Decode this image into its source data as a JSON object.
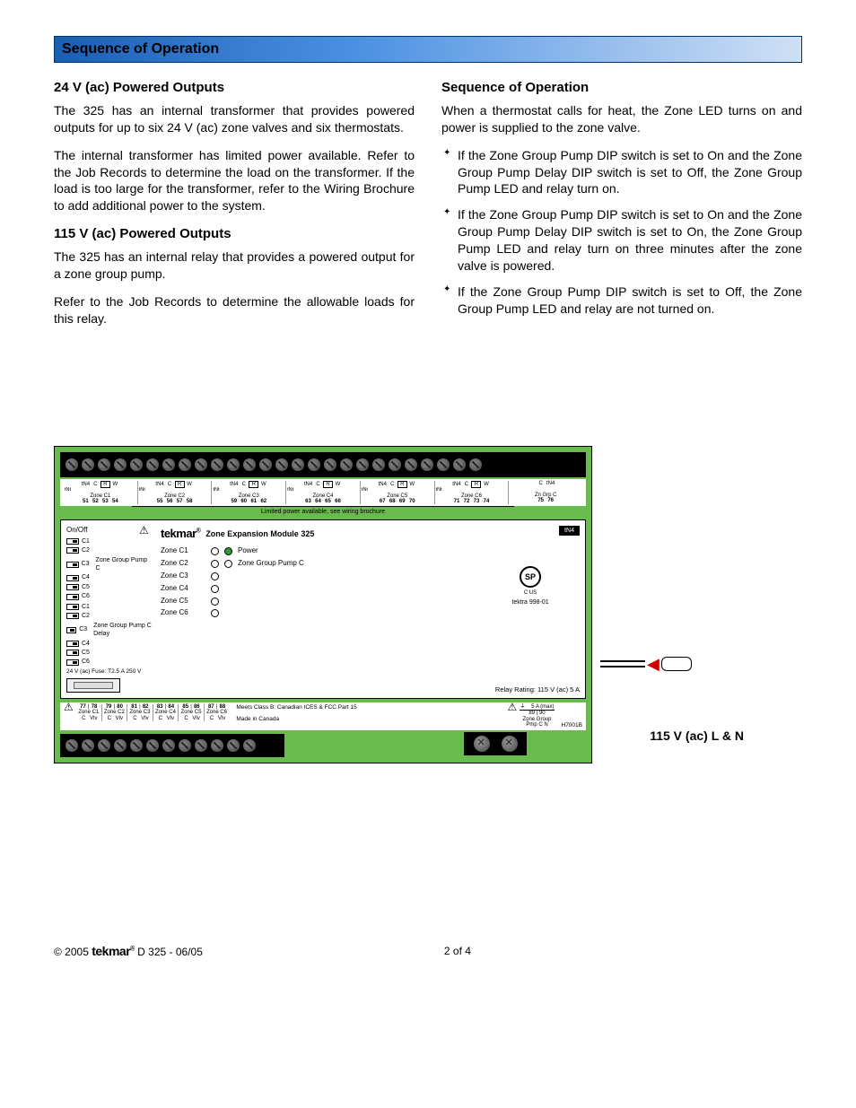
{
  "section_bar_title": "Sequence of Operation",
  "left_column": {
    "h1": "24 V (ac) Powered Outputs",
    "p1": "The 325 has an internal transformer that provides powered outputs for up to six 24 V (ac) zone valves and six thermostats.",
    "p2": "The internal transformer has limited power available. Refer to the Job Records to determine the load on the transformer. If the load is too large for the transformer, refer to the Wiring Brochure to add additional power to the system.",
    "h2": "115 V (ac) Powered Outputs",
    "p3": "The 325 has an internal relay that provides a powered output for a zone group pump.",
    "p4": "Refer to the Job Records to determine the allowable loads for this relay."
  },
  "right_column": {
    "h1": "Sequence of Operation",
    "p1": "When a thermostat calls for heat, the Zone LED turns on and power is supplied to the zone valve.",
    "bullets": [
      "If the Zone Group Pump DIP switch is set to On and the Zone Group Pump Delay DIP switch is set to Off, the Zone Group Pump LED and relay turn on.",
      "If the Zone Group Pump DIP switch is set to On and the Zone Group Pump Delay DIP switch is set to On, the Zone Group Pump LED and relay turn on three minutes after the zone valve is powered.",
      "If the Zone Group Pump DIP switch is set to Off, the Zone Group Pump LED and relay are not turned on."
    ]
  },
  "diagram": {
    "top_terminals": {
      "groups": [
        {
          "pins": [
            "tN4",
            "C",
            "R",
            "W"
          ],
          "boxed_idx": 2,
          "zone": "Zone C1",
          "nums": [
            "51",
            "52",
            "53",
            "54"
          ],
          "tNt": true
        },
        {
          "pins": [
            "tN4",
            "C",
            "R",
            "W"
          ],
          "boxed_idx": 2,
          "zone": "Zone C2",
          "nums": [
            "55",
            "56",
            "57",
            "58"
          ],
          "tNt": true
        },
        {
          "pins": [
            "tN4",
            "C",
            "R",
            "W"
          ],
          "boxed_idx": 2,
          "zone": "Zone C3",
          "nums": [
            "59",
            "60",
            "61",
            "62"
          ],
          "tNt": true
        },
        {
          "pins": [
            "tN4",
            "C",
            "R",
            "W"
          ],
          "boxed_idx": 2,
          "zone": "Zone C4",
          "nums": [
            "63",
            "64",
            "65",
            "66"
          ],
          "tNt": true
        },
        {
          "pins": [
            "tN4",
            "C",
            "R",
            "W"
          ],
          "boxed_idx": 2,
          "zone": "Zone C5",
          "nums": [
            "67",
            "68",
            "69",
            "70"
          ],
          "tNt": true
        },
        {
          "pins": [
            "tN4",
            "C",
            "R",
            "W"
          ],
          "boxed_idx": 2,
          "zone": "Zone C6",
          "nums": [
            "71",
            "72",
            "73",
            "74"
          ],
          "tNt": true
        },
        {
          "pins": [
            "C",
            "tN4"
          ],
          "zone": "Zn Grp C",
          "nums": [
            "75",
            "76"
          ],
          "tNt": false
        }
      ],
      "note": "Limited power available, see wiring brochure"
    },
    "dip": {
      "title": "On/Off",
      "group1_label": "Zone Group Pump C",
      "group2_label": "Zone Group Pump C Delay",
      "channels": [
        "C1",
        "C2",
        "C3",
        "C4",
        "C5",
        "C6"
      ],
      "fuse_note": "24 V (ac) Fuse: T2.5 A 250 V"
    },
    "center": {
      "brand": "tekmar",
      "module_title": "Zone Expansion Module 325",
      "leds": [
        "Zone C1",
        "Zone C2",
        "Zone C3",
        "Zone C4",
        "Zone C5",
        "Zone C6"
      ],
      "power_led": "Power",
      "pump_led": "Zone Group Pump C"
    },
    "right": {
      "tn4": "tN4",
      "cert": "SP",
      "cert_sub": "C        US",
      "tektra": "tektra 998-01",
      "relay_rating": "Relay Rating: 115 V (ac) 5 A"
    },
    "bottom_terminals": {
      "groups": [
        {
          "nums": [
            "77",
            "78"
          ],
          "zone": "Zone C1",
          "cw": [
            "C",
            "Vlv"
          ]
        },
        {
          "nums": [
            "79",
            "80"
          ],
          "zone": "Zone C2",
          "cw": [
            "C",
            "Vlv"
          ]
        },
        {
          "nums": [
            "81",
            "82"
          ],
          "zone": "Zone C3",
          "cw": [
            "C",
            "Vlv"
          ]
        },
        {
          "nums": [
            "83",
            "84"
          ],
          "zone": "Zone C4",
          "cw": [
            "C",
            "Vlv"
          ]
        },
        {
          "nums": [
            "85",
            "86"
          ],
          "zone": "Zone C5",
          "cw": [
            "C",
            "Vlv"
          ]
        },
        {
          "nums": [
            "87",
            "88"
          ],
          "zone": "Zone C6",
          "cw": [
            "C",
            "Vlv"
          ]
        }
      ],
      "compliance": "Meets Class B: Canadian ICES & FCC Part 15",
      "made_in": "Made in Canada",
      "right_group": {
        "nums": [
          "89",
          "90"
        ],
        "zone": "Zone Group",
        "cw": [
          "Pmp C",
          "N"
        ],
        "amp": "5 A (max)"
      },
      "part_no": "H7001B"
    },
    "side_label": "115 V (ac) L & N"
  },
  "footer": {
    "copyright": "© 2005",
    "brand": "tekmar",
    "doc": "D 325 - 06/05",
    "page": "2 of 4"
  },
  "colors": {
    "board_green": "#6abb4d",
    "bar_blue_left": "#1a5fb4",
    "bar_blue_right": "#d0e0f5",
    "led_on": "#2a9d2a",
    "arrow_red": "#cc0000"
  }
}
